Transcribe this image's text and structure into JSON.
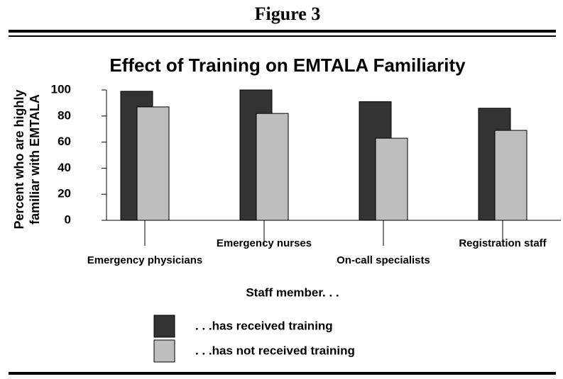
{
  "figure_label": "Figure 3",
  "chart_data": {
    "type": "bar",
    "title": "Effect of Training on EMTALA Familiarity",
    "ylabel": [
      "Percent who are highly",
      "familiar with EMTALA"
    ],
    "categories": [
      "Emergency physicians",
      "Emergency nurses",
      "On-call specialists",
      "Registration staff"
    ],
    "series": [
      {
        "name": ". . .has received training",
        "color": "#333333",
        "values": [
          99,
          100,
          91,
          86
        ]
      },
      {
        "name": ". . .has not received training",
        "color": "#bebebe",
        "values": [
          87,
          82,
          63,
          69
        ]
      }
    ],
    "legend_title": "Staff member. . .",
    "ylim": [
      0,
      100
    ],
    "yticks": [
      0,
      20,
      40,
      60,
      80,
      100
    ],
    "grid": false
  }
}
